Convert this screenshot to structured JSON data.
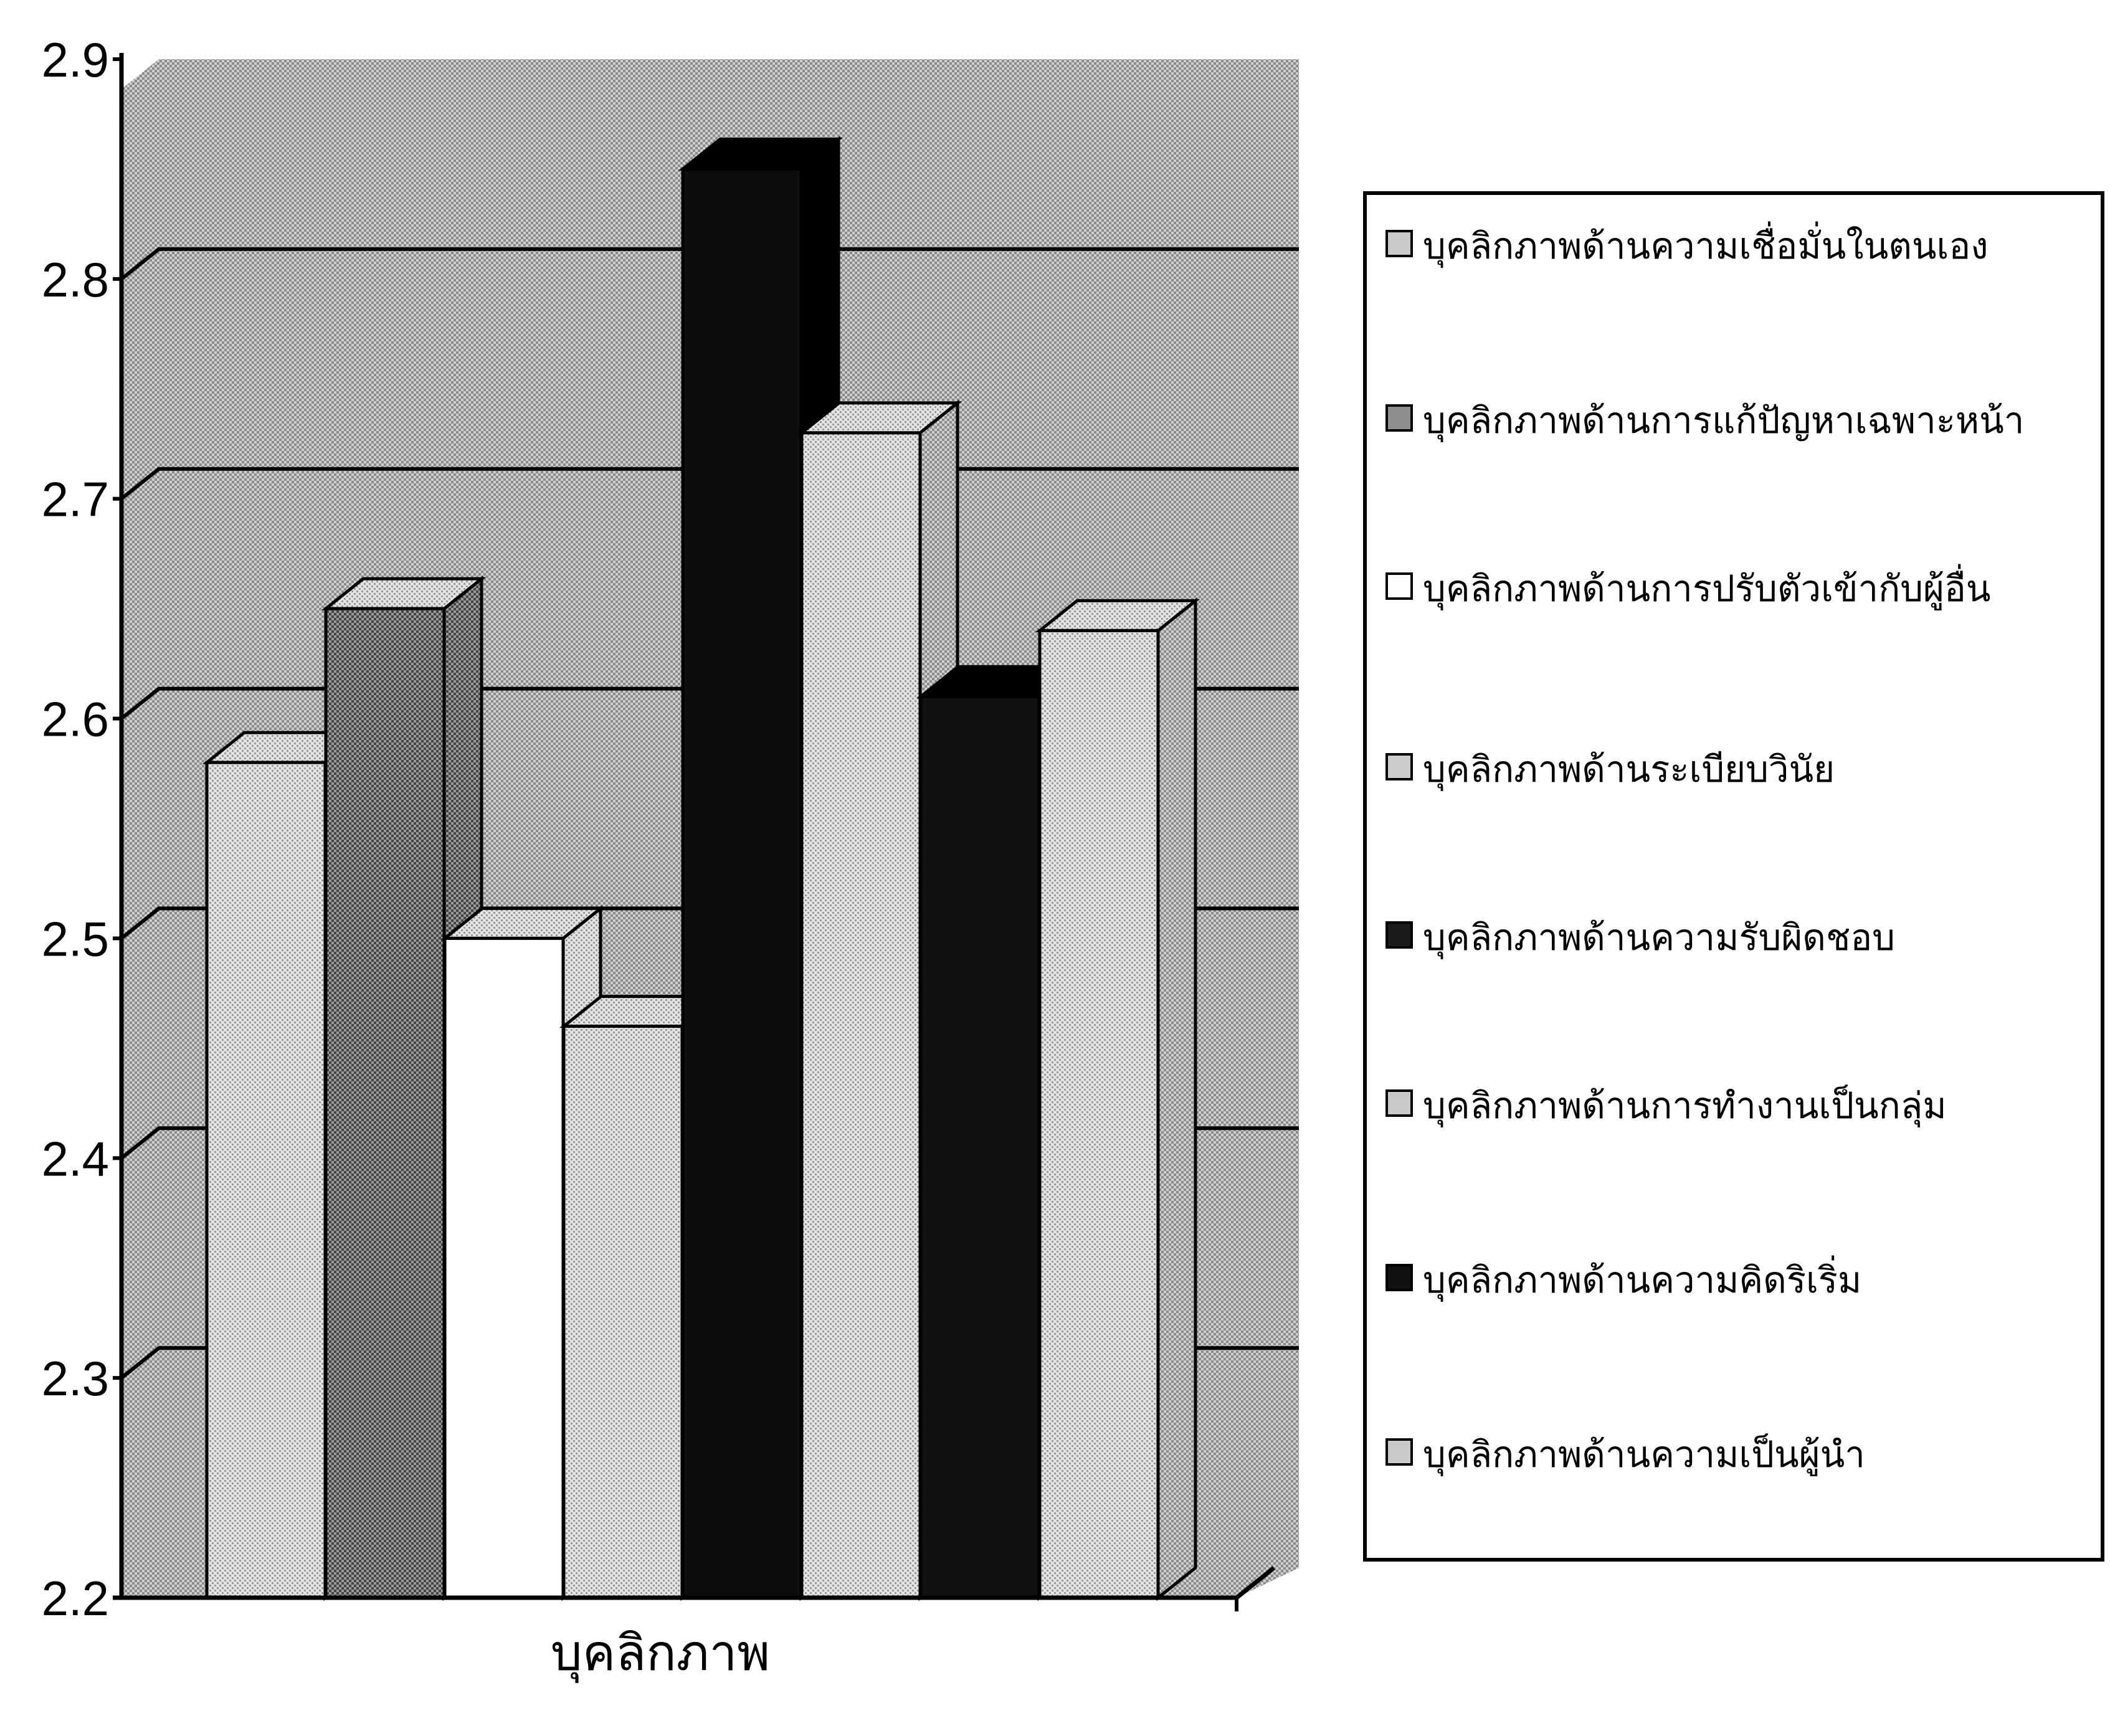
{
  "chart_data": {
    "type": "bar",
    "categories": [
      "บุคลิกภาพ"
    ],
    "series": [
      {
        "name": "บุคลิกภาพด้านความเชื่อมั่นในตนเอง",
        "values": [
          2.58
        ]
      },
      {
        "name": "บุคลิกภาพด้านการแก้ปัญหาเฉพาะหน้า",
        "values": [
          2.65
        ]
      },
      {
        "name": "บุคลิกภาพด้านการปรับตัวเข้ากับผู้อื่น",
        "values": [
          2.5
        ]
      },
      {
        "name": "บุคลิกภาพด้านระเบียบวินัย",
        "values": [
          2.46
        ]
      },
      {
        "name": "บุคลิกภาพด้านความรับผิดชอบ",
        "values": [
          2.85
        ]
      },
      {
        "name": "บุคลิกภาพด้านการทำงานเป็นกลุ่ม",
        "values": [
          2.73
        ]
      },
      {
        "name": "บุคลิกภาพด้านความคิดริเริ่ม",
        "values": [
          2.61
        ]
      },
      {
        "name": "บุคลิกภาพด้านความเป็นผู้นำ",
        "values": [
          2.64
        ]
      }
    ],
    "xlabel": "บุคลิกภาพ",
    "ylabel": "",
    "ylim": [
      2.2,
      2.9
    ],
    "yticks": [
      "2.2",
      "2.3",
      "2.4",
      "2.5",
      "2.6",
      "2.7",
      "2.8",
      "2.9"
    ],
    "grid": true,
    "legend": "right",
    "colors": {
      "s0": "#bdbdbd",
      "s1": "#8a8a8a",
      "s2": "#ffffff",
      "s3": "#d0d0d0",
      "s4": "#111111",
      "s5": "#c4c4c4",
      "s6": "#161616",
      "s7": "#c8c8c8"
    }
  }
}
